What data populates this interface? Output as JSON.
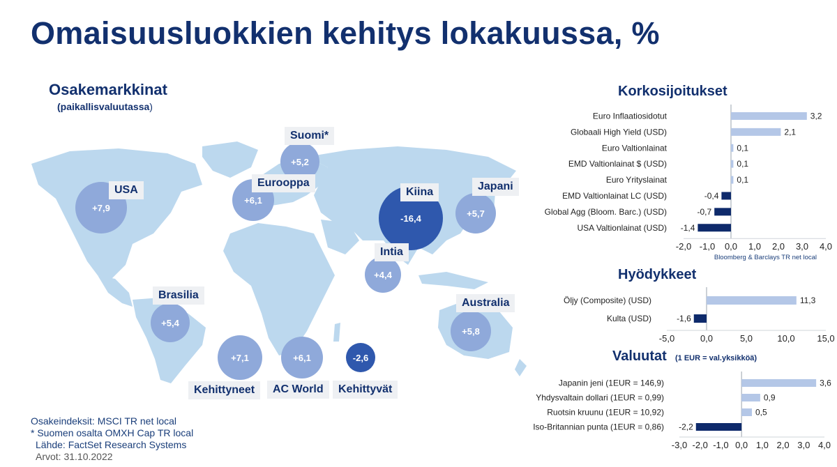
{
  "title": "Omaisuusluokkien kehitys lokakuussa, %",
  "equities": {
    "title": "Osakemarkkinat",
    "subtitle_bold": "(paikallisvaluutassa",
    "subtitle_close": ")",
    "notes": [
      "Osakeindeksit: MSCI TR net local",
      "* Suomen osalta OMXH Cap TR local",
      "Lähde: FactSet Research Systems"
    ],
    "date_label": "Arvot: 31.10.2022"
  },
  "colors": {
    "title": "#12306e",
    "positive_bar": "#b4c7e7",
    "negative_bar": "#0e2a6b",
    "bubble_positive": "#8fa9da",
    "bubble_negative": "#2f58ad",
    "map": "#bcd8ee"
  },
  "chart_data": [
    {
      "type": "bubble",
      "title": "Osakemarkkinat",
      "series": [
        {
          "label": "USA",
          "value": "+7,9",
          "num": 7.9
        },
        {
          "label": "Suomi*",
          "value": "+5,2",
          "num": 5.2
        },
        {
          "label": "Eurooppa",
          "value": "+6,1",
          "num": 6.1
        },
        {
          "label": "Kiina",
          "value": "-16,4",
          "num": -16.4
        },
        {
          "label": "Japani",
          "value": "+5,7",
          "num": 5.7
        },
        {
          "label": "Intia",
          "value": "+4,4",
          "num": 4.4
        },
        {
          "label": "Brasilia",
          "value": "+5,4",
          "num": 5.4
        },
        {
          "label": "Australia",
          "value": "+5,8",
          "num": 5.8
        },
        {
          "label": "Kehittyneet",
          "value": "+7,1",
          "num": 7.1
        },
        {
          "label": "AC World",
          "value": "+6,1",
          "num": 6.1
        },
        {
          "label": "Kehittyvät",
          "value": "-2,6",
          "num": -2.6
        }
      ]
    },
    {
      "type": "bar",
      "orientation": "horizontal",
      "title": "Korkosijoitukset",
      "categories": [
        "Euro Inflaatiosidotut",
        "Globaali High Yield (USD)",
        "Euro Valtionlainat",
        "EMD Valtionlainat $ (USD)",
        "Euro Yrityslainat",
        "EMD Valtionlainat LC (USD)",
        "Global Agg (Bloom. Barc.) (USD)",
        "USA Valtionlainat (USD)"
      ],
      "values": [
        3.2,
        2.1,
        0.1,
        0.1,
        0.1,
        -0.4,
        -0.7,
        -1.4
      ],
      "value_labels": [
        "3,2",
        "2,1",
        "0,1",
        "0,1",
        "0,1",
        "-0,4",
        "-0,7",
        "-1,4"
      ],
      "xlim": [
        -2,
        4
      ],
      "ticks": [
        -2,
        -1,
        0,
        1,
        2,
        3,
        4
      ],
      "tick_labels": [
        "-2,0",
        "-1,0",
        "0,0",
        "1,0",
        "2,0",
        "3,0",
        "4,0"
      ],
      "source_note": "Bloomberg & Barclays TR net local"
    },
    {
      "type": "bar",
      "orientation": "horizontal",
      "title": "Hyödykkeet",
      "categories": [
        "Öljy (Composite) (USD)",
        "Kulta (USD)"
      ],
      "values": [
        11.3,
        -1.6
      ],
      "value_labels": [
        "11,3",
        "-1,6"
      ],
      "xlim": [
        -5,
        15
      ],
      "ticks": [
        -5,
        0,
        5,
        10,
        15
      ],
      "tick_labels": [
        "-5,0",
        "0,0",
        "5,0",
        "10,0",
        "15,0"
      ]
    },
    {
      "type": "bar",
      "orientation": "horizontal",
      "title": "Valuutat",
      "subtitle": "(1 EUR = val.yksikköä)",
      "categories": [
        "Japanin jeni (1EUR = 146,9)",
        "Yhdysvaltain dollari (1EUR = 0,99)",
        "Ruotsin kruunu (1EUR = 10,92)",
        "Iso-Britannian punta (1EUR = 0,86)"
      ],
      "values": [
        3.6,
        0.9,
        0.5,
        -2.2
      ],
      "value_labels": [
        "3,6",
        "0,9",
        "0,5",
        "-2,2"
      ],
      "xlim": [
        -3,
        4
      ],
      "ticks": [
        -3,
        -2,
        -1,
        0,
        1,
        2,
        3,
        4
      ],
      "tick_labels": [
        "-3,0",
        "-2,0",
        "-1,0",
        "0,0",
        "1,0",
        "2,0",
        "3,0",
        "4,0"
      ]
    }
  ]
}
